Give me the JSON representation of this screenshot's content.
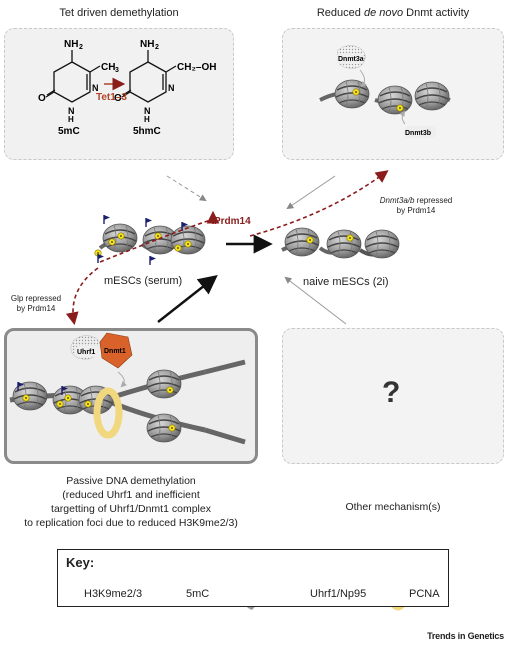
{
  "panels": {
    "top_left": {
      "title": "Tet driven demethylation",
      "molecule_left": "5mC",
      "molecule_right": "5hmC",
      "enzyme": "Tet1–3",
      "nh2_left": "NH",
      "nh2_right": "NH",
      "ch3": "CH",
      "ch2oh": "CH₂–OH"
    },
    "top_right": {
      "title_prefix": "Reduced ",
      "title_italic": "de novo",
      "title_suffix": " Dnmt activity",
      "enzyme_a": "Dnmt3a",
      "enzyme_b": "Dnmt3b"
    },
    "center": {
      "serum_label": "mESCs (serum)",
      "naive_label": "naive mESCs (2i)",
      "prdm14": "Prdm14",
      "dnmt3_note_italic": "Dnmt3a/b",
      "dnmt3_note_rest": " repressed",
      "dnmt3_note_line2": "by Prdm14",
      "glp_note_line1": "Glp repressed",
      "glp_note_line2": "by Prdm14"
    },
    "bottom_left": {
      "uhrf1": "Uhrf1",
      "dnmt1": "Dnmt1",
      "caption_lines": [
        "Passive DNA demethylation",
        "(reduced Uhrf1 and inefficient",
        "targetting of Uhrf1/Dnmt1 complex",
        "to replication foci due to reduced H3K9me2/3)"
      ]
    },
    "bottom_right": {
      "question": "?",
      "caption": "Other mechanism(s)"
    }
  },
  "key": {
    "title": "Key:",
    "items": [
      {
        "label": "H3K9me2/3"
      },
      {
        "label": "5mC"
      },
      {
        "label": "Uhrf1/Np95"
      },
      {
        "label": "PCNA"
      }
    ]
  },
  "colors": {
    "arrow_red": "#8b1c1c",
    "dnmt1_orange": "#d9622b",
    "flag_navy": "#1c1f6e",
    "pcna_yellow": "#f1d77e",
    "methyl_yellow": "#f7e31a",
    "nucleosome_gray": "#9a9a9a"
  },
  "footer": {
    "brand": "Trends in Genetics"
  }
}
